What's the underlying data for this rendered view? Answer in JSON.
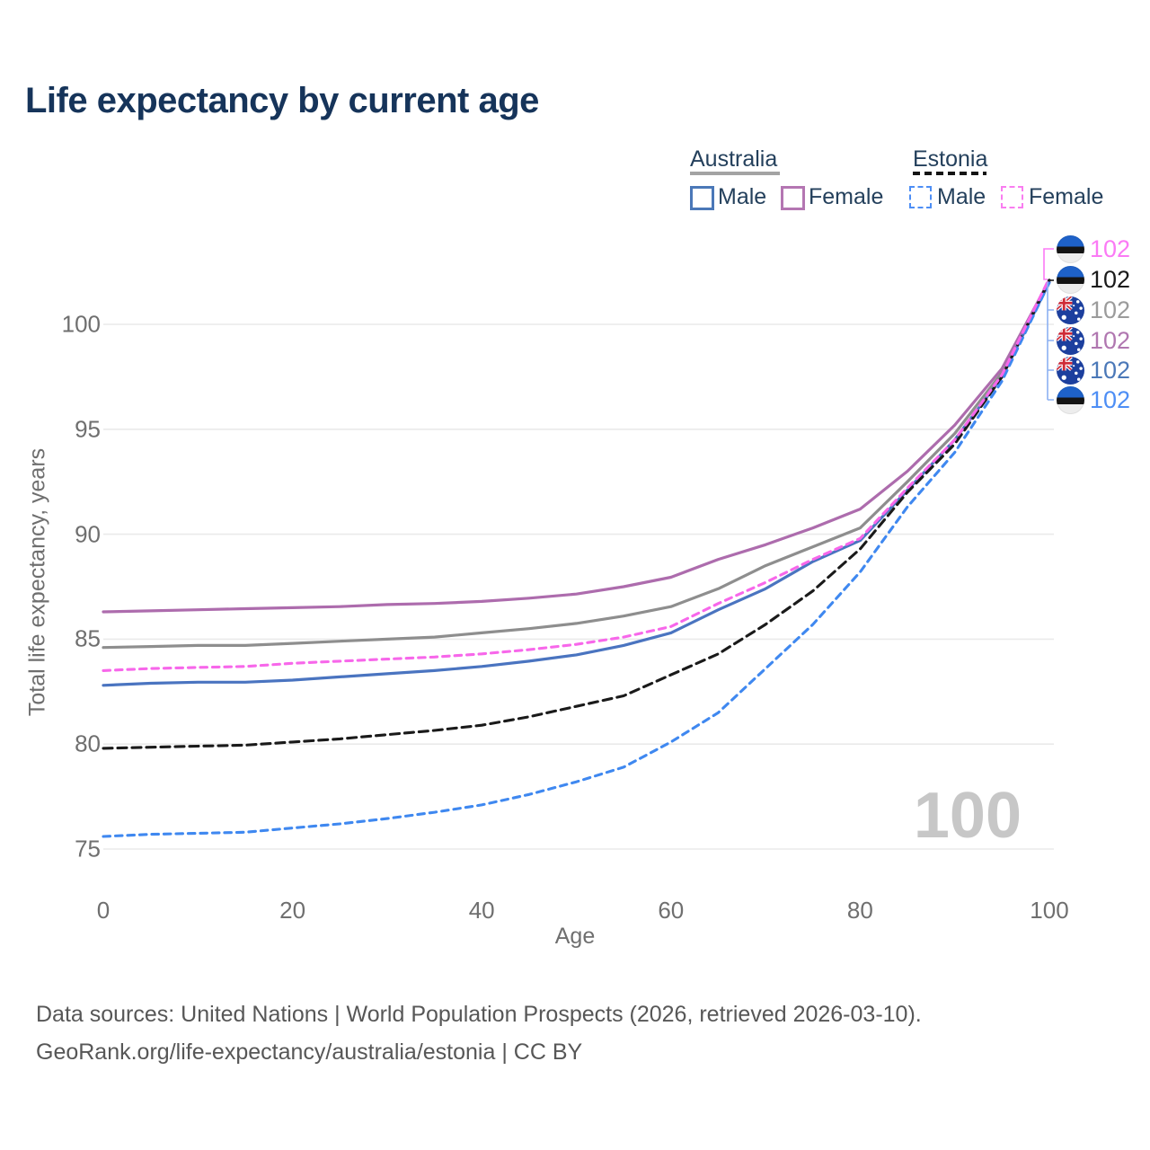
{
  "title": "Life expectancy by current age",
  "legend": {
    "groups": [
      {
        "label": "Australia",
        "style": "solid",
        "color": "#a3a3a3"
      },
      {
        "label": "Estonia",
        "style": "dashed",
        "color": "#141414"
      }
    ],
    "items": [
      {
        "label": "Male",
        "country": "Australia",
        "style": "solid",
        "color": "#4b78b8"
      },
      {
        "label": "Female",
        "country": "Australia",
        "style": "solid",
        "color": "#b476b2"
      },
      {
        "label": "Male",
        "country": "Estonia",
        "style": "dashed",
        "color": "#4d8ef5"
      },
      {
        "label": "Female",
        "country": "Estonia",
        "style": "dashed",
        "color": "#f97df0"
      }
    ]
  },
  "chart_data": {
    "type": "line",
    "title": "Life expectancy by current age",
    "xlabel": "Age",
    "ylabel": "Total life expectancy, years",
    "xlim": [
      0,
      100
    ],
    "ylim": [
      73.5,
      103
    ],
    "x_ticks": [
      0,
      20,
      40,
      60,
      80,
      100
    ],
    "y_ticks": [
      75,
      80,
      85,
      90,
      95,
      100
    ],
    "grid": "horizontal-only",
    "legend_position": "top-right",
    "watermark": "100",
    "x": [
      0,
      5,
      10,
      15,
      20,
      25,
      30,
      35,
      40,
      45,
      50,
      55,
      60,
      65,
      70,
      75,
      80,
      85,
      90,
      95,
      100
    ],
    "series": [
      {
        "name": "Australia",
        "color": "#8e8e8e",
        "dash": "solid",
        "values": [
          84.6,
          84.65,
          84.7,
          84.7,
          84.8,
          84.9,
          85.0,
          85.1,
          85.3,
          85.5,
          85.75,
          86.1,
          86.55,
          87.4,
          88.5,
          89.4,
          90.3,
          92.5,
          94.8,
          97.7,
          102.1
        ]
      },
      {
        "name": "Australia Female",
        "color": "#ad6cad",
        "dash": "solid",
        "values": [
          86.3,
          86.35,
          86.4,
          86.45,
          86.5,
          86.55,
          86.65,
          86.7,
          86.8,
          86.95,
          87.15,
          87.5,
          87.95,
          88.8,
          89.5,
          90.3,
          91.2,
          93.0,
          95.2,
          97.9,
          102.1
        ]
      },
      {
        "name": "Australia Male",
        "color": "#4a74c0",
        "dash": "solid",
        "values": [
          82.8,
          82.9,
          82.95,
          82.95,
          83.05,
          83.2,
          83.35,
          83.5,
          83.7,
          83.95,
          84.25,
          84.7,
          85.3,
          86.4,
          87.4,
          88.7,
          89.7,
          92.1,
          94.5,
          97.5,
          102.0
        ]
      },
      {
        "name": "Estonia",
        "color": "#1a1a1a",
        "dash": "dashed",
        "values": [
          79.8,
          79.85,
          79.9,
          79.95,
          80.1,
          80.25,
          80.45,
          80.65,
          80.9,
          81.3,
          81.8,
          82.3,
          83.3,
          84.3,
          85.7,
          87.3,
          89.3,
          92.0,
          94.3,
          97.5,
          102.1
        ]
      },
      {
        "name": "Estonia Male",
        "color": "#3f88f0",
        "dash": "dashed",
        "values": [
          75.6,
          75.7,
          75.75,
          75.8,
          76.0,
          76.2,
          76.45,
          76.75,
          77.1,
          77.6,
          78.2,
          78.9,
          80.1,
          81.5,
          83.6,
          85.7,
          88.2,
          91.3,
          93.9,
          97.3,
          102.0
        ]
      },
      {
        "name": "Estonia Female",
        "color": "#f767ea",
        "dash": "dashed",
        "values": [
          83.5,
          83.6,
          83.65,
          83.7,
          83.85,
          83.95,
          84.05,
          84.15,
          84.3,
          84.5,
          84.75,
          85.1,
          85.6,
          86.7,
          87.7,
          88.8,
          89.8,
          92.2,
          94.5,
          97.6,
          102.2
        ]
      }
    ]
  },
  "right_labels": [
    {
      "series": "Estonia Female",
      "flag": "ee",
      "value": "102",
      "color": "#fb7af5"
    },
    {
      "series": "Estonia",
      "flag": "ee",
      "value": "102",
      "color": "#1a1a1a"
    },
    {
      "series": "Australia",
      "flag": "au",
      "value": "102",
      "color": "#9b9b9b"
    },
    {
      "series": "Australia Female",
      "flag": "au",
      "value": "102",
      "color": "#b077b0"
    },
    {
      "series": "Australia Male",
      "flag": "au",
      "value": "102",
      "color": "#4b78b8"
    },
    {
      "series": "Estonia Male",
      "flag": "ee",
      "value": "102",
      "color": "#4d8ef5"
    }
  ],
  "footer": {
    "line1": "Data sources: United Nations | World Population Prospects (2026, retrieved 2026-03-10).",
    "line2": "GeoRank.org/life-expectancy/australia/estonia | CC BY"
  }
}
